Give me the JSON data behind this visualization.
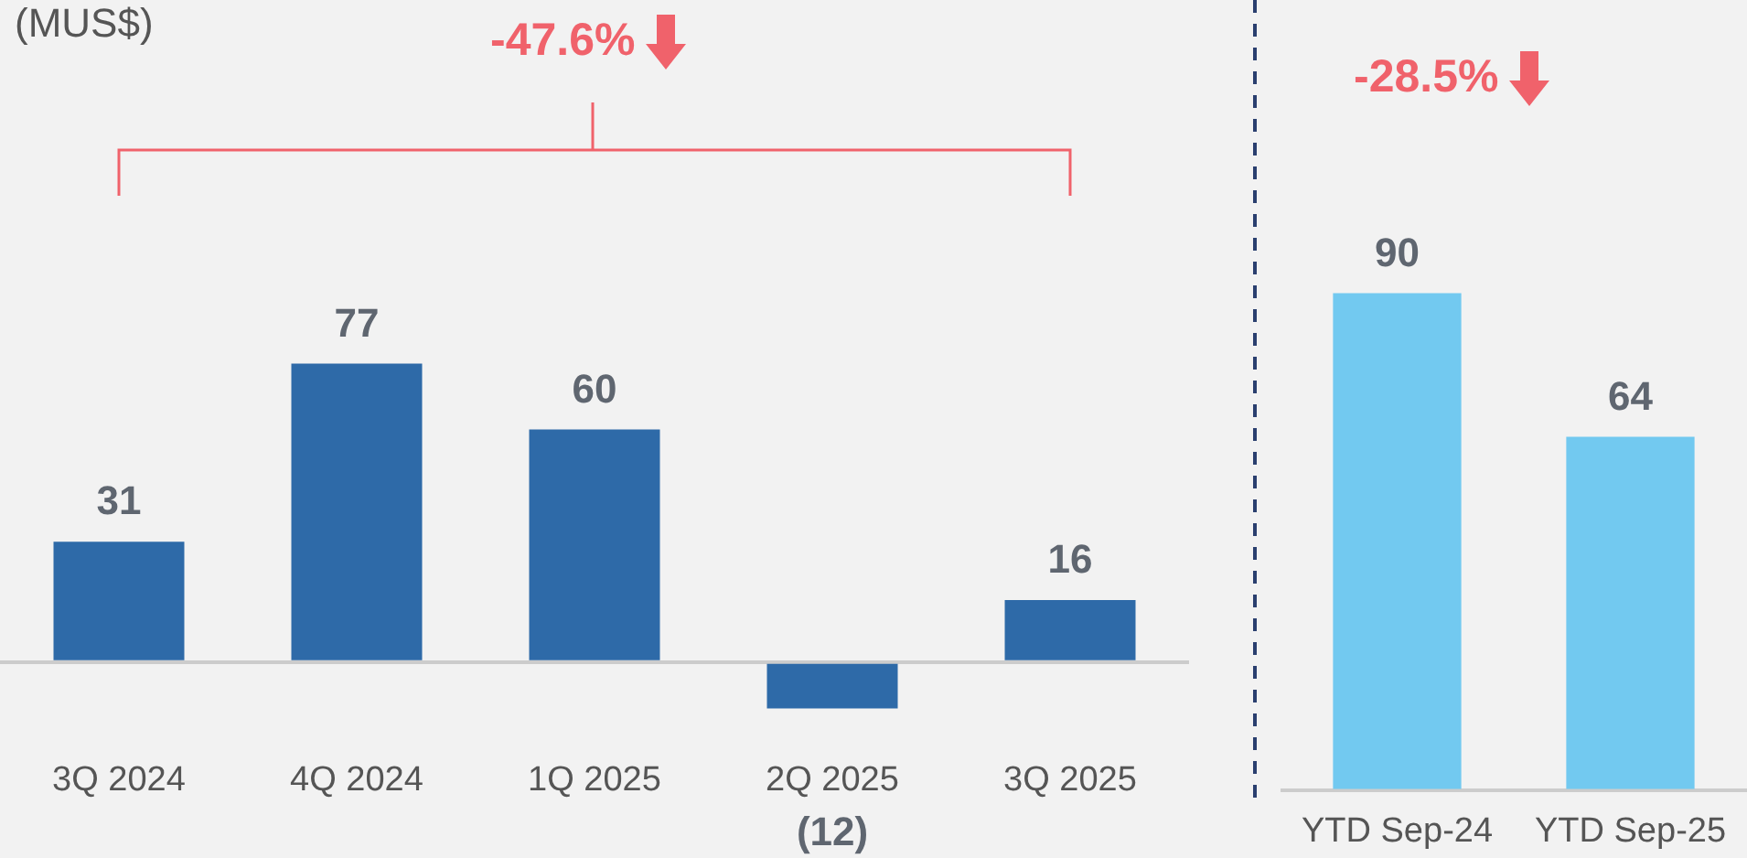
{
  "chart_data": [
    {
      "type": "bar",
      "ylabel": "(MUS$)",
      "categories": [
        "3Q 2024",
        "4Q 2024",
        "1Q 2025",
        "2Q 2025",
        "3Q 2025"
      ],
      "values": [
        31,
        77,
        60,
        -12,
        16
      ],
      "color": "#2e6aa8",
      "value_labels": [
        "31",
        "77",
        "60",
        "(12)",
        "16"
      ],
      "annotations": [
        "-47.6%"
      ]
    },
    {
      "type": "bar",
      "categories": [
        "YTD Sep-24",
        "YTD Sep-25"
      ],
      "values": [
        90,
        64
      ],
      "color": "#72c9f0",
      "data_labels": true,
      "annotations": [
        "-28.5%"
      ]
    }
  ]
}
